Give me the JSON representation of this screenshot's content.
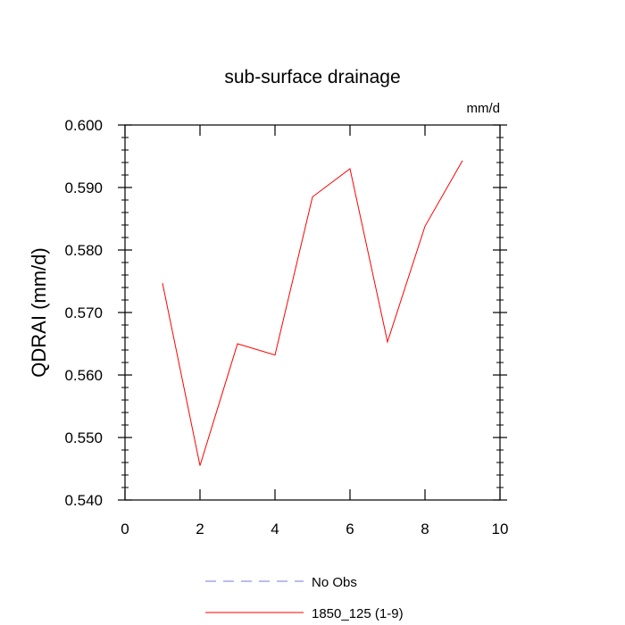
{
  "chart_data": {
    "type": "line",
    "title": "sub-surface drainage",
    "units_label": "mm/d",
    "ylabel": "QDRAI  (mm/d)",
    "xlabel": "",
    "xlim": [
      0,
      10
    ],
    "ylim": [
      0.54,
      0.6
    ],
    "x_ticks": [
      0,
      2,
      4,
      6,
      8,
      10
    ],
    "x_tick_labels": [
      "0",
      "2",
      "4",
      "6",
      "8",
      "10"
    ],
    "y_ticks": [
      0.54,
      0.55,
      0.56,
      0.57,
      0.58,
      0.59,
      0.6
    ],
    "y_tick_labels": [
      "0.540",
      "0.550",
      "0.560",
      "0.570",
      "0.580",
      "0.590",
      "0.600"
    ],
    "grid": false,
    "legend_position": "bottom-center",
    "series": [
      {
        "name": "1850_125 (1-9)",
        "color": "#ff0000",
        "dash": "solid",
        "x": [
          1,
          2,
          3,
          4,
          5,
          6,
          7,
          8,
          9
        ],
        "y": [
          0.5747,
          0.5455,
          0.565,
          0.5632,
          0.5885,
          0.593,
          0.5653,
          0.5838,
          0.5943
        ]
      }
    ],
    "legend": [
      {
        "label": "No Obs",
        "color": "#7777dd",
        "dash": "dashed"
      },
      {
        "label": "1850_125 (1-9)",
        "color": "#ff0000",
        "dash": "solid"
      }
    ]
  }
}
